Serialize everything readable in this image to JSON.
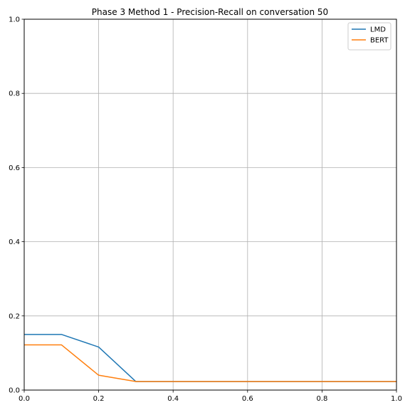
{
  "chart_data": {
    "type": "line",
    "title": "Phase 3 Method 1 - Precision-Recall on conversation 50",
    "xlabel": "",
    "ylabel": "",
    "xlim": [
      0.0,
      1.0
    ],
    "ylim": [
      0.0,
      1.0
    ],
    "grid": true,
    "legend_position": "top-right",
    "x_ticks": [
      "0.0",
      "0.2",
      "0.4",
      "0.6",
      "0.8",
      "1.0"
    ],
    "y_ticks": [
      "0.0",
      "0.2",
      "0.4",
      "0.6",
      "0.8",
      "1.0"
    ],
    "series": [
      {
        "name": "LMD",
        "color": "#1f77b4",
        "x": [
          0.0,
          0.1,
          0.2,
          0.3,
          0.4,
          0.5,
          0.6,
          0.7,
          0.8,
          0.9,
          1.0
        ],
        "y": [
          0.15,
          0.15,
          0.116,
          0.023,
          0.023,
          0.023,
          0.023,
          0.023,
          0.023,
          0.023,
          0.023
        ]
      },
      {
        "name": "BERT",
        "color": "#ff7f0e",
        "x": [
          0.0,
          0.1,
          0.2,
          0.3,
          0.4,
          0.5,
          0.6,
          0.7,
          0.8,
          0.9,
          1.0
        ],
        "y": [
          0.122,
          0.122,
          0.04,
          0.023,
          0.023,
          0.023,
          0.023,
          0.023,
          0.023,
          0.023,
          0.023
        ]
      }
    ]
  }
}
